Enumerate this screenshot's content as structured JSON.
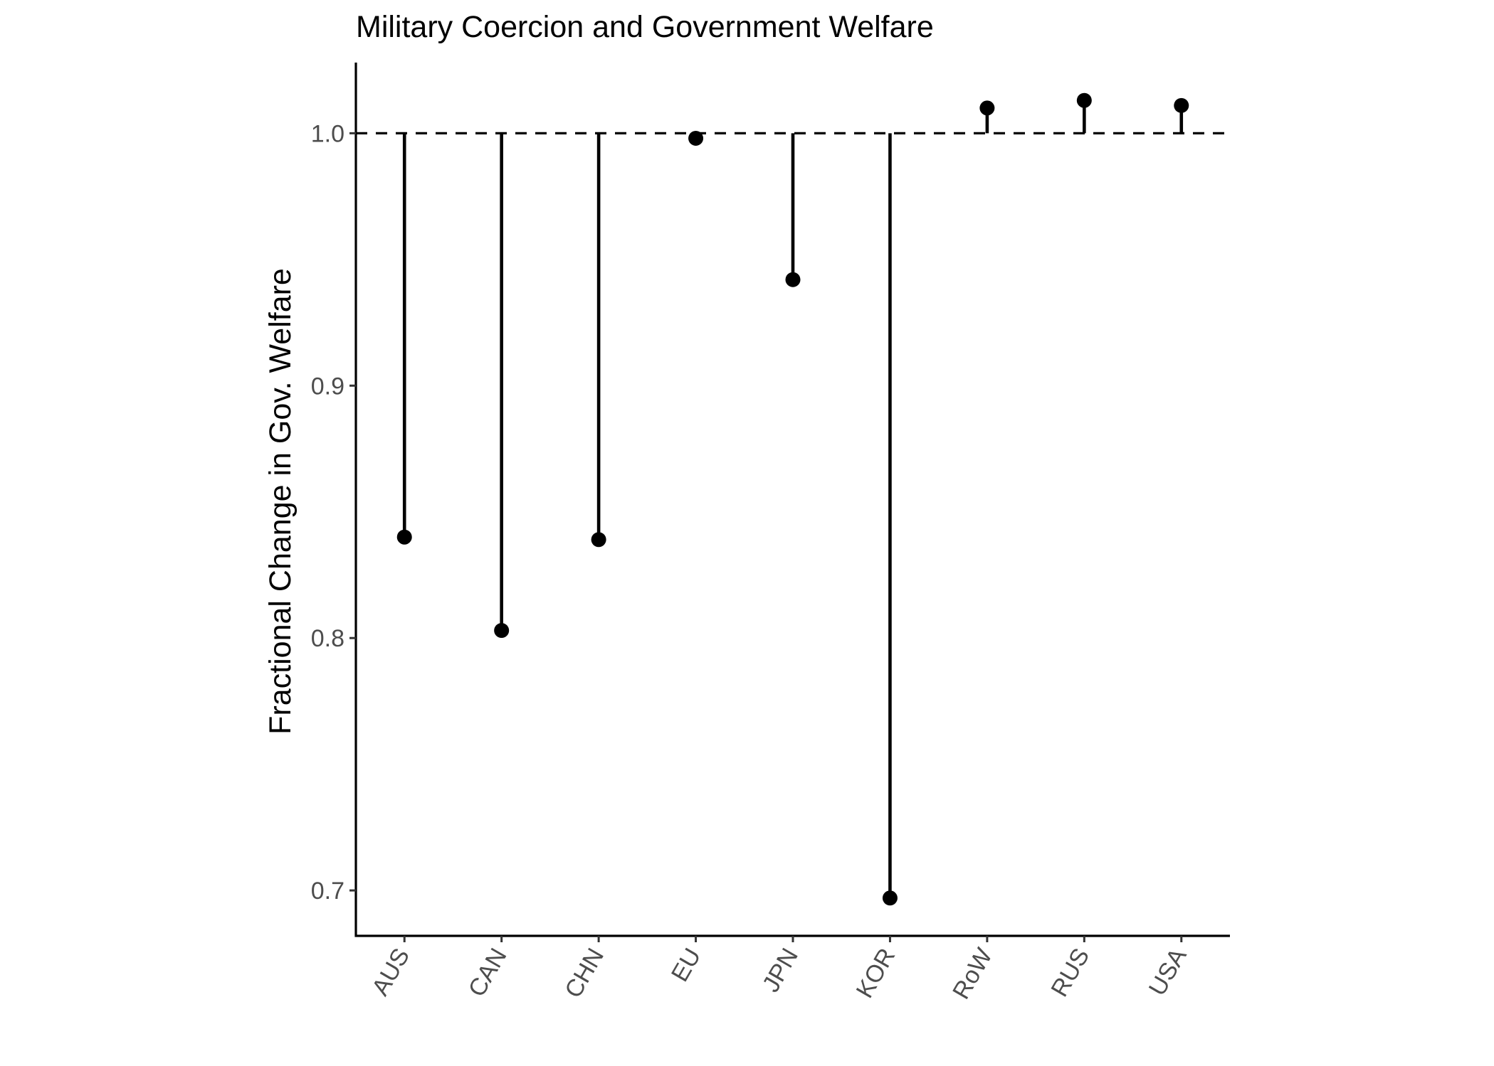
{
  "chart_data": {
    "type": "lollipop",
    "title": "Military Coercion and Government Welfare",
    "xlabel": "",
    "ylabel": "Fractional Change in Gov. Welfare",
    "categories": [
      "AUS",
      "CAN",
      "CHN",
      "EU",
      "JPN",
      "KOR",
      "RoW",
      "RUS",
      "USA"
    ],
    "values": [
      0.84,
      0.803,
      0.839,
      0.998,
      0.942,
      0.697,
      1.01,
      1.013,
      1.011
    ],
    "baseline": 1.0,
    "ylim": [
      0.682,
      1.028
    ],
    "yticks": [
      0.7,
      0.8,
      0.9,
      1.0
    ],
    "ytick_labels": [
      "0.7",
      "0.8",
      "0.9",
      "1.0"
    ],
    "grid": false,
    "legend": "none",
    "colors": {
      "marks": "#000000",
      "axis": "#000000",
      "tick_labels": "#4d4d4d"
    }
  }
}
